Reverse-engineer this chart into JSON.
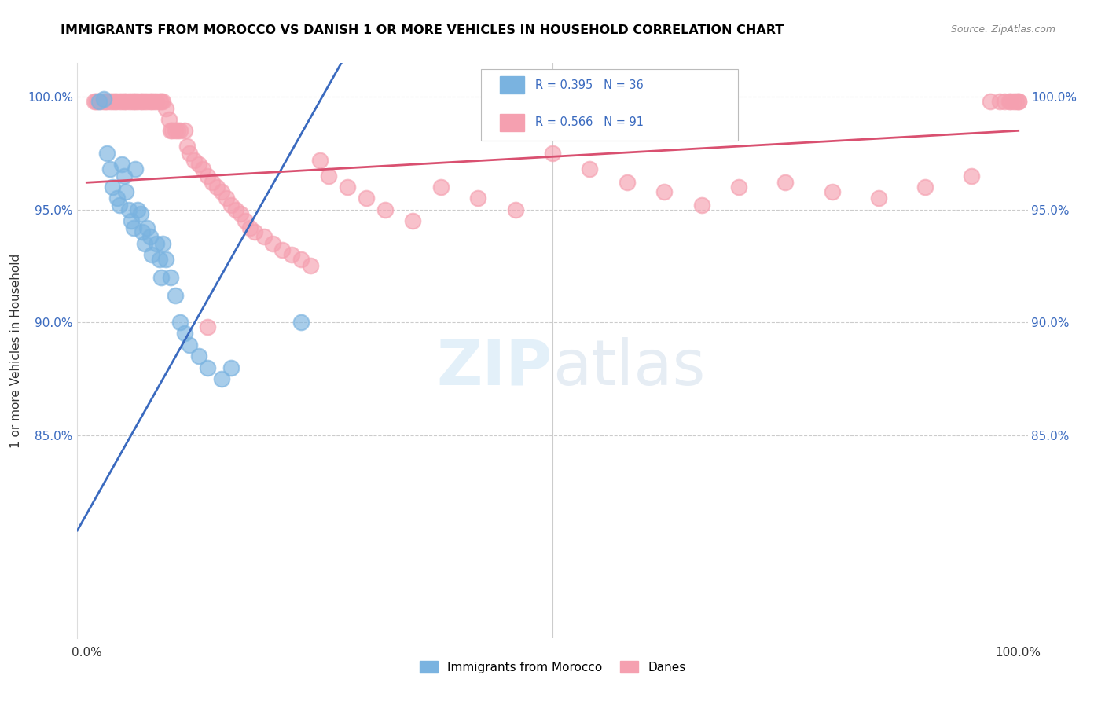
{
  "title": "IMMIGRANTS FROM MOROCCO VS DANISH 1 OR MORE VEHICLES IN HOUSEHOLD CORRELATION CHART",
  "source": "Source: ZipAtlas.com",
  "ylabel": "1 or more Vehicles in Household",
  "ytick_labels": [
    "85.0%",
    "90.0%",
    "95.0%",
    "100.0%"
  ],
  "ytick_values": [
    0.85,
    0.9,
    0.95,
    1.0
  ],
  "xlim": [
    -0.01,
    1.01
  ],
  "ylim": [
    0.76,
    1.015
  ],
  "legend_blue_label": "Immigrants from Morocco",
  "legend_pink_label": "Danes",
  "R_blue": 0.395,
  "N_blue": 36,
  "R_pink": 0.566,
  "N_pink": 91,
  "blue_color": "#7ab3e0",
  "pink_color": "#f5a0b0",
  "trendline_blue": "#3a6abf",
  "trendline_pink": "#d95070",
  "blue_trendline_x0": 0.0,
  "blue_trendline_y0": 0.815,
  "blue_trendline_x1": 0.25,
  "blue_trendline_y1": 0.998,
  "pink_trendline_x0": 0.0,
  "pink_trendline_y0": 0.962,
  "pink_trendline_x1": 1.0,
  "pink_trendline_y1": 0.985,
  "blue_x": [
    0.013,
    0.018,
    0.022,
    0.025,
    0.028,
    0.033,
    0.035,
    0.038,
    0.04,
    0.042,
    0.045,
    0.048,
    0.05,
    0.052,
    0.055,
    0.058,
    0.06,
    0.062,
    0.065,
    0.068,
    0.07,
    0.075,
    0.078,
    0.08,
    0.082,
    0.085,
    0.09,
    0.095,
    0.1,
    0.105,
    0.11,
    0.12,
    0.13,
    0.145,
    0.155,
    0.23
  ],
  "blue_y": [
    0.998,
    0.999,
    0.975,
    0.968,
    0.96,
    0.955,
    0.952,
    0.97,
    0.965,
    0.958,
    0.95,
    0.945,
    0.942,
    0.968,
    0.95,
    0.948,
    0.94,
    0.935,
    0.942,
    0.938,
    0.93,
    0.935,
    0.928,
    0.92,
    0.935,
    0.928,
    0.92,
    0.912,
    0.9,
    0.895,
    0.89,
    0.885,
    0.88,
    0.875,
    0.88,
    0.9
  ],
  "pink_x": [
    0.008,
    0.01,
    0.012,
    0.015,
    0.018,
    0.02,
    0.022,
    0.025,
    0.028,
    0.03,
    0.032,
    0.035,
    0.038,
    0.04,
    0.042,
    0.045,
    0.048,
    0.05,
    0.052,
    0.055,
    0.058,
    0.06,
    0.062,
    0.065,
    0.068,
    0.07,
    0.072,
    0.075,
    0.078,
    0.08,
    0.082,
    0.085,
    0.088,
    0.09,
    0.092,
    0.095,
    0.098,
    0.1,
    0.105,
    0.108,
    0.11,
    0.115,
    0.12,
    0.125,
    0.13,
    0.135,
    0.14,
    0.145,
    0.15,
    0.155,
    0.16,
    0.165,
    0.17,
    0.175,
    0.18,
    0.19,
    0.2,
    0.21,
    0.22,
    0.23,
    0.24,
    0.25,
    0.26,
    0.28,
    0.3,
    0.32,
    0.35,
    0.38,
    0.42,
    0.46,
    0.5,
    0.54,
    0.58,
    0.62,
    0.66,
    0.7,
    0.75,
    0.8,
    0.85,
    0.9,
    0.95,
    0.97,
    0.98,
    0.985,
    0.99,
    0.992,
    0.995,
    0.998,
    1.0,
    1.0,
    0.13
  ],
  "pink_y": [
    0.998,
    0.998,
    0.998,
    0.998,
    0.998,
    0.998,
    0.998,
    0.998,
    0.998,
    0.998,
    0.998,
    0.998,
    0.998,
    0.998,
    0.998,
    0.998,
    0.998,
    0.998,
    0.998,
    0.998,
    0.998,
    0.998,
    0.998,
    0.998,
    0.998,
    0.998,
    0.998,
    0.998,
    0.998,
    0.998,
    0.998,
    0.995,
    0.99,
    0.985,
    0.985,
    0.985,
    0.985,
    0.985,
    0.985,
    0.978,
    0.975,
    0.972,
    0.97,
    0.968,
    0.965,
    0.962,
    0.96,
    0.958,
    0.955,
    0.952,
    0.95,
    0.948,
    0.945,
    0.942,
    0.94,
    0.938,
    0.935,
    0.932,
    0.93,
    0.928,
    0.925,
    0.972,
    0.965,
    0.96,
    0.955,
    0.95,
    0.945,
    0.96,
    0.955,
    0.95,
    0.975,
    0.968,
    0.962,
    0.958,
    0.952,
    0.96,
    0.962,
    0.958,
    0.955,
    0.96,
    0.965,
    0.998,
    0.998,
    0.998,
    0.998,
    0.998,
    0.998,
    0.998,
    0.998,
    0.998,
    0.898
  ]
}
